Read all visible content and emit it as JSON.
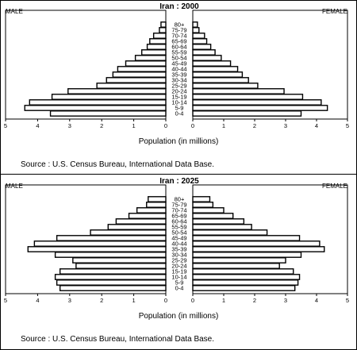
{
  "chart_data": [
    {
      "type": "bar",
      "subtype": "population-pyramid",
      "title": "Iran : 2000",
      "left_label": "MALE",
      "right_label": "FEMALE",
      "xlabel": "Population (in millions)",
      "source": "Source : U.S. Census Bureau, International Data Base.",
      "xlim": [
        0,
        5
      ],
      "x_ticks": [
        "5",
        "4",
        "3",
        "2",
        "1",
        "0",
        "0",
        "1",
        "2",
        "3",
        "4",
        "5"
      ],
      "categories": [
        "80+",
        "75-79",
        "70-74",
        "65-69",
        "60-64",
        "55-59",
        "50-54",
        "45-49",
        "40-44",
        "35-39",
        "30-34",
        "25-29",
        "20-24",
        "15-19",
        "10-14",
        "5-9",
        "0-4"
      ],
      "series": [
        {
          "name": "MALE",
          "values": [
            0.15,
            0.2,
            0.38,
            0.5,
            0.58,
            0.75,
            0.95,
            1.25,
            1.5,
            1.65,
            1.85,
            2.15,
            3.05,
            3.55,
            4.25,
            4.4,
            3.6
          ]
        },
        {
          "name": "FEMALE",
          "values": [
            0.15,
            0.2,
            0.38,
            0.45,
            0.58,
            0.72,
            0.92,
            1.22,
            1.45,
            1.6,
            1.8,
            2.1,
            2.95,
            3.55,
            4.15,
            4.35,
            3.5
          ]
        }
      ]
    },
    {
      "type": "bar",
      "subtype": "population-pyramid",
      "title": "Iran : 2025",
      "left_label": "MALE",
      "right_label": "FEMALE",
      "xlabel": "Population (in millions)",
      "source": "Source : U.S. Census Bureau, International Data Base.",
      "xlim": [
        0,
        5
      ],
      "x_ticks": [
        "5",
        "4",
        "3",
        "2",
        "1",
        "0",
        "0",
        "1",
        "2",
        "3",
        "4",
        "5"
      ],
      "categories": [
        "80+",
        "75-79",
        "70-74",
        "65-69",
        "60-64",
        "55-59",
        "50-54",
        "45-49",
        "40-44",
        "35-39",
        "30-34",
        "25-29",
        "20-24",
        "15-19",
        "10-14",
        "5-9",
        "0-4"
      ],
      "series": [
        {
          "name": "MALE",
          "values": [
            0.55,
            0.6,
            0.9,
            1.15,
            1.55,
            1.8,
            2.35,
            3.4,
            4.1,
            4.3,
            3.45,
            2.9,
            2.8,
            3.3,
            3.45,
            3.4,
            3.3
          ]
        },
        {
          "name": "FEMALE",
          "values": [
            0.55,
            0.65,
            1.0,
            1.3,
            1.65,
            1.9,
            2.4,
            3.45,
            4.1,
            4.25,
            3.5,
            3.0,
            2.8,
            3.25,
            3.45,
            3.4,
            3.3
          ]
        }
      ]
    }
  ]
}
